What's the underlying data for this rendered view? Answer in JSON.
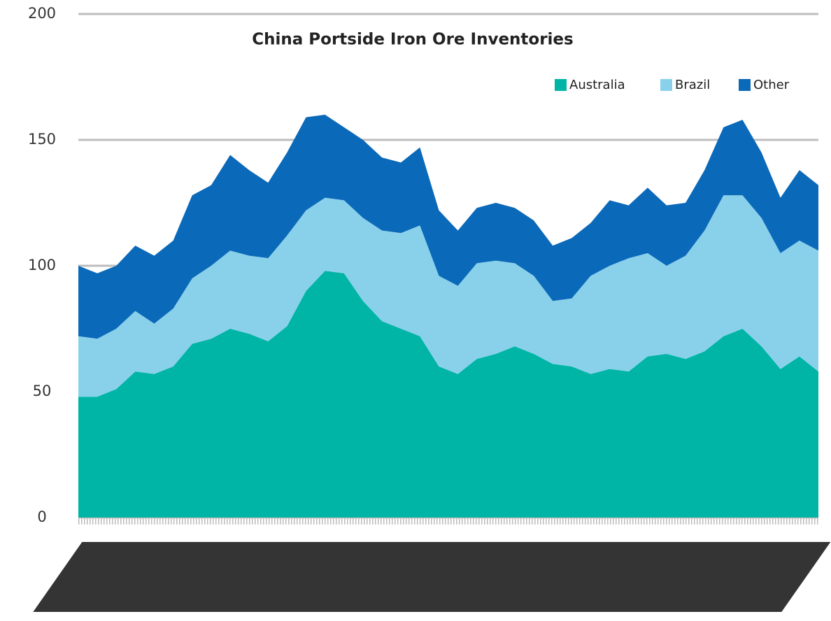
{
  "chart_data": {
    "type": "stacked-area",
    "title": "China Portside Iron Ore Inventories",
    "categories": [
      null,
      null,
      null,
      null,
      null,
      null,
      null,
      null,
      null,
      null,
      null,
      null,
      null,
      null,
      null,
      null,
      null,
      null,
      null,
      null,
      null,
      null,
      null,
      null,
      null,
      null,
      null,
      null,
      null,
      null,
      null,
      null,
      null,
      null,
      null,
      null,
      null,
      null,
      null,
      null
    ],
    "series": [
      {
        "name": "Australia",
        "color": "#00b5a6",
        "values": [
          48,
          48,
          51,
          58,
          57,
          60,
          69,
          71,
          75,
          73,
          70,
          76,
          90,
          98,
          97,
          86,
          78,
          75,
          72,
          60,
          57,
          63,
          65,
          68,
          65,
          61,
          60,
          57,
          59,
          58,
          64,
          65,
          63,
          66,
          72,
          75,
          68,
          59,
          64,
          58
        ]
      },
      {
        "name": "Brazil",
        "color": "#89d1ea",
        "values": [
          24,
          23,
          24,
          24,
          20,
          23,
          26,
          29,
          31,
          31,
          33,
          36,
          32,
          29,
          29,
          33,
          36,
          38,
          44,
          36,
          35,
          38,
          37,
          33,
          31,
          25,
          27,
          39,
          41,
          45,
          41,
          35,
          41,
          48,
          56,
          53,
          51,
          46,
          46,
          48
        ]
      },
      {
        "name": "Other",
        "color": "#0b69b9",
        "values": [
          28,
          26,
          25,
          26,
          27,
          27,
          33,
          32,
          38,
          34,
          30,
          33,
          37,
          33,
          29,
          31,
          29,
          28,
          31,
          26,
          22,
          22,
          23,
          22,
          22,
          22,
          24,
          21,
          26,
          21,
          26,
          24,
          21,
          24,
          27,
          30,
          26,
          22,
          28,
          26
        ]
      }
    ],
    "ylim": [
      0,
      200
    ],
    "yticks": [
      0,
      50,
      100,
      150,
      200
    ],
    "grid": true,
    "legend": "top-right"
  }
}
